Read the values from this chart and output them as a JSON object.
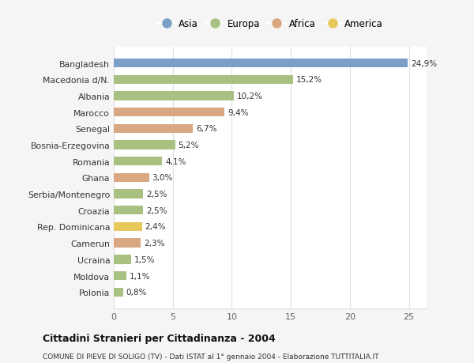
{
  "countries": [
    "Bangladesh",
    "Macedonia d/N.",
    "Albania",
    "Marocco",
    "Senegal",
    "Bosnia-Erzegovina",
    "Romania",
    "Ghana",
    "Serbia/Montenegro",
    "Croazia",
    "Rep. Dominicana",
    "Camerun",
    "Ucraina",
    "Moldova",
    "Polonia"
  ],
  "values": [
    24.9,
    15.2,
    10.2,
    9.4,
    6.7,
    5.2,
    4.1,
    3.0,
    2.5,
    2.5,
    2.4,
    2.3,
    1.5,
    1.1,
    0.8
  ],
  "labels": [
    "24,9%",
    "15,2%",
    "10,2%",
    "9,4%",
    "6,7%",
    "5,2%",
    "4,1%",
    "3,0%",
    "2,5%",
    "2,5%",
    "2,4%",
    "2,3%",
    "1,5%",
    "1,1%",
    "0,8%"
  ],
  "continents": [
    "Asia",
    "Europa",
    "Europa",
    "Africa",
    "Africa",
    "Europa",
    "Europa",
    "Africa",
    "Europa",
    "Europa",
    "America",
    "Africa",
    "Europa",
    "Europa",
    "Europa"
  ],
  "colors": {
    "Asia": "#7b9fc9",
    "Europa": "#a8c080",
    "Africa": "#d9a882",
    "America": "#e8c85a"
  },
  "xlim": [
    0,
    26.5
  ],
  "xticks": [
    0,
    5,
    10,
    15,
    20,
    25
  ],
  "title": "Cittadini Stranieri per Cittadinanza - 2004",
  "subtitle": "COMUNE DI PIEVE DI SOLIGO (TV) - Dati ISTAT al 1° gennaio 2004 - Elaborazione TUTTITALIA.IT",
  "plot_bg": "#ffffff",
  "fig_bg": "#f5f5f5",
  "grid_color": "#e0e0e0",
  "bar_height": 0.55,
  "legend_order": [
    "Asia",
    "Europa",
    "Africa",
    "America"
  ]
}
